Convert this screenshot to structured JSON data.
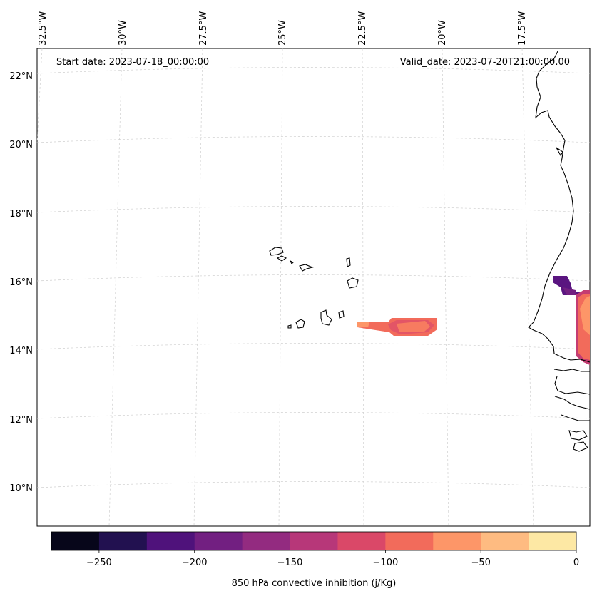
{
  "map": {
    "start_date": "Start date: 2023-07-18_00:00:00",
    "valid_date": "Valid_date: 2023-07-20T21:00:00.00",
    "lon_labels": [
      "32.5°W",
      "30°W",
      "27.5°W",
      "25°W",
      "22.5°W",
      "20°W",
      "17.5°W"
    ],
    "lat_labels": [
      "22°N",
      "20°N",
      "18°N",
      "16°N",
      "14°N",
      "12°N",
      "10°N"
    ]
  },
  "colorbar": {
    "label": "850 hPa convective inhibition (j/Kg)",
    "ticks": [
      "−250",
      "−200",
      "−150",
      "−100",
      "−50",
      "0"
    ],
    "colors": [
      "#07061a",
      "#221150",
      "#4f127b",
      "#721f81",
      "#932b80",
      "#b73779",
      "#da4868",
      "#f26b5b",
      "#fd9668",
      "#febb81",
      "#fde8a4"
    ]
  }
}
